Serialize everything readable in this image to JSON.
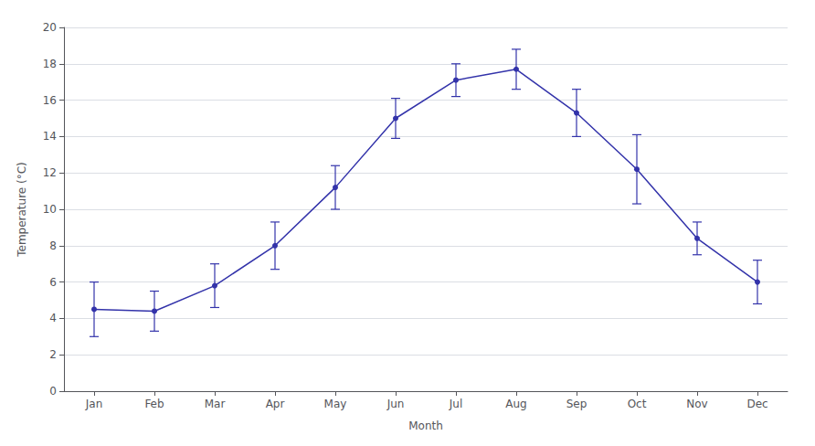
{
  "chart_data": {
    "type": "line",
    "xlabel": "Month",
    "ylabel": "Temperature (°C)",
    "categories": [
      "Jan",
      "Feb",
      "Mar",
      "Apr",
      "May",
      "Jun",
      "Jul",
      "Aug",
      "Sep",
      "Oct",
      "Nov",
      "Dec"
    ],
    "values": [
      4.5,
      4.4,
      5.8,
      8.0,
      11.2,
      15.0,
      17.1,
      17.7,
      15.3,
      12.2,
      8.4,
      6.0
    ],
    "errors": [
      1.5,
      1.1,
      1.2,
      1.3,
      1.2,
      1.1,
      0.9,
      1.1,
      1.3,
      1.9,
      0.9,
      1.2
    ],
    "color": "#3333aa",
    "marker": "circle",
    "line_style": "solid",
    "ylim": [
      0,
      20
    ],
    "yticks": [
      0,
      2,
      4,
      6,
      8,
      10,
      12,
      14,
      16,
      18,
      20
    ],
    "grid": true
  }
}
